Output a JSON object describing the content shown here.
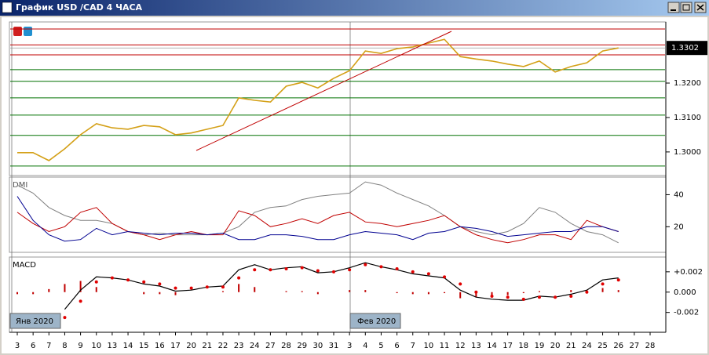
{
  "window": {
    "title": "График USD /CAD  4 ЧАСА"
  },
  "chart_data": [
    {
      "type": "line",
      "color": "#d4a017",
      "values": [
        1.2998,
        1.2998,
        1.2975,
        1.3009,
        1.305,
        1.3082,
        1.307,
        1.3066,
        1.3077,
        1.3073,
        1.305,
        1.3055,
        1.3066,
        1.3077,
        1.3157,
        1.315,
        1.3145,
        1.3191,
        1.3202,
        1.3186,
        1.3214,
        1.3236,
        1.3293,
        1.3286,
        1.33,
        1.3305,
        1.3316,
        1.3327,
        1.3277,
        1.327,
        1.3264,
        1.3255,
        1.3248,
        1.3264,
        1.3232,
        1.3248,
        1.3259,
        1.3293,
        1.3302,
        null,
        null
      ],
      "ylim": [
        1.2936,
        1.3373
      ],
      "yticks": [
        {
          "value": 1.3,
          "label": "1.3000"
        },
        {
          "value": 1.31,
          "label": "1.3100"
        },
        {
          "value": 1.32,
          "label": "1.3200"
        }
      ],
      "price_marker": {
        "value": 1.3302,
        "label": "1.3302"
      },
      "levels": [
        {
          "value": 1.3357,
          "color": "#c00000"
        },
        {
          "value": 1.3311,
          "color": "#c00000"
        },
        {
          "value": 1.3282,
          "color": "#c00000"
        },
        {
          "value": 1.3239,
          "color": "#007000"
        },
        {
          "value": 1.3205,
          "color": "#007000"
        },
        {
          "value": 1.3157,
          "color": "#007000"
        },
        {
          "value": 1.3107,
          "color": "#007000"
        },
        {
          "value": 1.3048,
          "color": "#007000"
        },
        {
          "value": 1.2959,
          "color": "#007000"
        }
      ]
    },
    {
      "type": "line",
      "title": "DMI",
      "series": [
        {
          "color": "#808080",
          "values": [
            46,
            41,
            32,
            27,
            24,
            24,
            22,
            17,
            15,
            16,
            15,
            15,
            15,
            16,
            20,
            29,
            32,
            33,
            37,
            39,
            40,
            41,
            48,
            46,
            41,
            37,
            33,
            27,
            20,
            17,
            15,
            17,
            22,
            32,
            29,
            22,
            17,
            15,
            10,
            null,
            null
          ]
        },
        {
          "color": "#c00000",
          "values": [
            29,
            22,
            17,
            20,
            29,
            32,
            22,
            17,
            15,
            12,
            15,
            17,
            15,
            15,
            30,
            27,
            20,
            22,
            25,
            22,
            27,
            29,
            23,
            22,
            20,
            22,
            24,
            27,
            20,
            15,
            12,
            10,
            12,
            15,
            15,
            12,
            24,
            20,
            17,
            null,
            null
          ]
        },
        {
          "color": "#000090",
          "values": [
            39,
            24,
            15,
            11,
            12,
            19,
            15,
            17,
            16,
            15,
            16,
            16,
            15,
            16,
            12,
            12,
            15,
            15,
            14,
            12,
            12,
            15,
            17,
            16,
            15,
            12,
            16,
            17,
            20,
            19,
            17,
            14,
            15,
            16,
            17,
            17,
            20,
            20,
            17,
            null,
            null
          ]
        }
      ],
      "ylim": [
        5,
        50
      ],
      "yticks": [
        20,
        40
      ]
    },
    {
      "type": "macd",
      "title": "MACD",
      "categories": [
        "3",
        "6",
        "7",
        "8",
        "9",
        "10",
        "13",
        "14",
        "15",
        "16",
        "17",
        "20",
        "21",
        "22",
        "23",
        "24",
        "27",
        "28",
        "29",
        "30",
        "31",
        "3",
        "4",
        "5",
        "6",
        "7",
        "10",
        "11",
        "12",
        "13",
        "14",
        "17",
        "18",
        "19",
        "20",
        "21",
        "24",
        "25",
        "26",
        "27",
        "28"
      ],
      "series": [
        {
          "color": "#000000",
          "values": [
            null,
            null,
            null,
            -0.0017,
            0.0002,
            0.0015,
            0.0014,
            0.0012,
            0.0008,
            0.0006,
            0.0001,
            0.0002,
            0.0005,
            0.0006,
            0.0022,
            0.0027,
            0.0022,
            0.0024,
            0.0025,
            0.0019,
            0.002,
            0.0024,
            0.0029,
            0.0025,
            0.0022,
            0.0018,
            0.0016,
            0.0014,
            0.0002,
            -0.0005,
            -0.0007,
            -0.0008,
            -0.0008,
            -0.0004,
            -0.0005,
            -0.0002,
            0.0002,
            0.0012,
            0.0014,
            null,
            null
          ]
        },
        {
          "color": "#e00000",
          "values": [
            null,
            null,
            null,
            -0.0025,
            -0.0009,
            0.001,
            0.0014,
            0.0012,
            0.001,
            0.0008,
            0.0004,
            0.0004,
            0.0005,
            0.0005,
            0.0014,
            0.0022,
            0.0022,
            0.0023,
            0.0024,
            0.0021,
            0.002,
            0.0022,
            0.0027,
            0.0025,
            0.0023,
            0.002,
            0.0018,
            0.0015,
            0.0008,
            0,
            -0.0004,
            -0.0005,
            -0.0007,
            -0.0005,
            -0.0005,
            -0.0004,
            0,
            0.0008,
            0.0012,
            null,
            null
          ]
        },
        {
          "color": "#c00000",
          "values": [
            -0.0002,
            -0.0002,
            0.0003,
            0.0008,
            0.0011,
            0.0005,
            0,
            0,
            -0.0002,
            -0.0002,
            -0.0003,
            0,
            0,
            0.0001,
            0.0008,
            0.0005,
            0,
            0.0001,
            0.0001,
            -0.0002,
            0,
            0.0002,
            0.0002,
            0,
            -0.0001,
            -0.0002,
            -0.0002,
            -0.0001,
            -0.0006,
            -0.0005,
            -0.0003,
            -0.0003,
            -0.0001,
            0.0001,
            0,
            0.0002,
            0.0002,
            0.0004,
            0.0002,
            null,
            null
          ]
        }
      ],
      "ylim": [
        -0.0038,
        0.0033
      ],
      "yticks": [
        {
          "value": 0.002,
          "label": "+0.002"
        },
        {
          "value": 0,
          "label": "0.000"
        },
        {
          "value": -0.002,
          "label": "-0.002"
        }
      ],
      "annotations": [
        "Янв 2020",
        "Фев 2020"
      ]
    }
  ]
}
